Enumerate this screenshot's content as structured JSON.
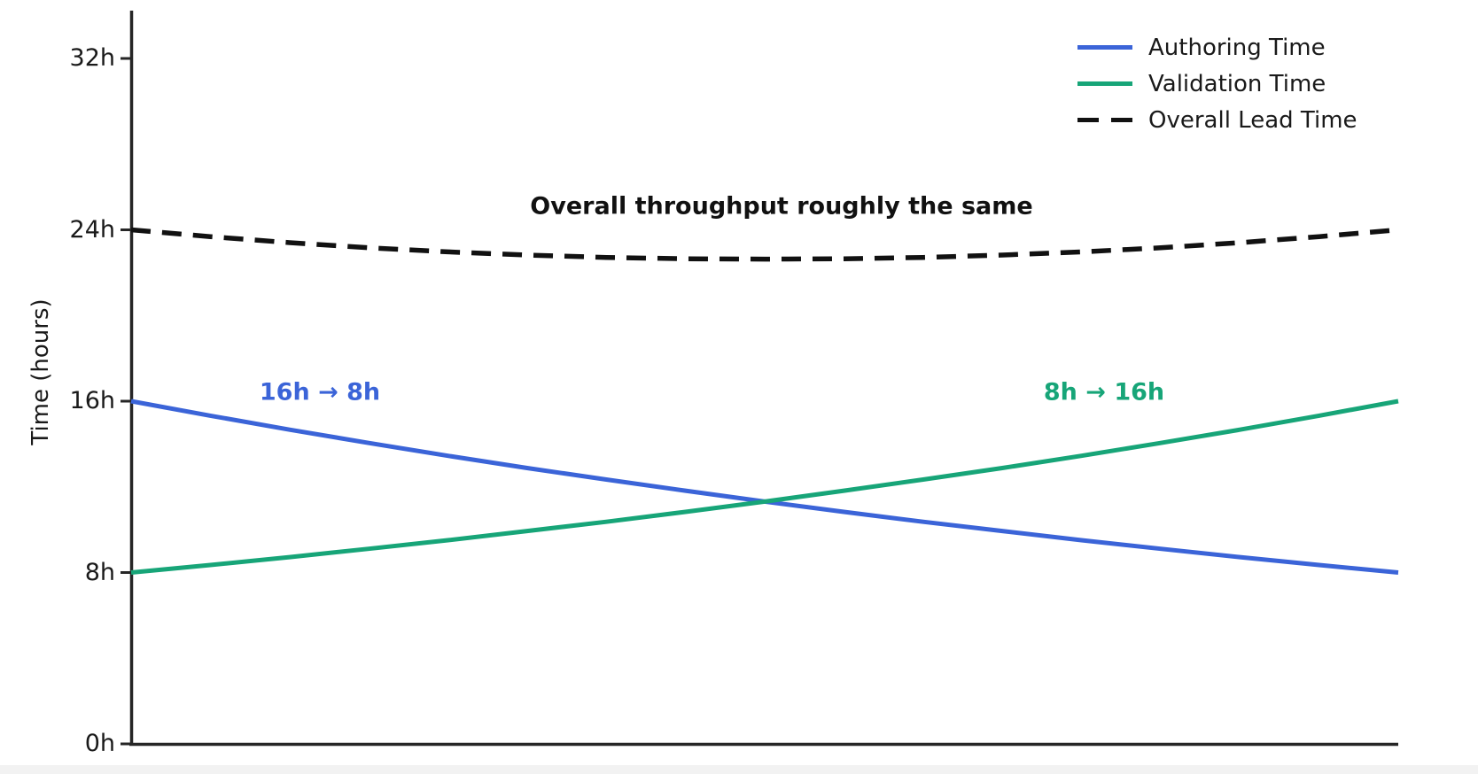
{
  "chart_data": {
    "type": "line",
    "ylabel": "Time (hours)",
    "ylim": [
      0,
      34
    ],
    "grid": false,
    "legend_position": "upper right",
    "yticks": [
      {
        "label": "0h",
        "value": 0
      },
      {
        "label": "8h",
        "value": 8
      },
      {
        "label": "16h",
        "value": 16
      },
      {
        "label": "24h",
        "value": 24
      },
      {
        "label": "32h",
        "value": 32
      }
    ],
    "x": [
      0,
      0.0625,
      0.125,
      0.1875,
      0.25,
      0.3125,
      0.375,
      0.4375,
      0.5,
      0.5625,
      0.625,
      0.6875,
      0.75,
      0.8125,
      0.875,
      0.9375,
      1
    ],
    "series": [
      {
        "name": "Authoring Time",
        "color": "#3b64d8",
        "dashed": false,
        "start_value_hours": 16,
        "end_value_hours": 8,
        "values": [
          16,
          15.32,
          14.67,
          14.05,
          13.45,
          12.88,
          12.34,
          11.82,
          11.31,
          10.83,
          10.37,
          9.94,
          9.51,
          9.11,
          8.72,
          8.35,
          8
        ]
      },
      {
        "name": "Validation Time",
        "color": "#17a578",
        "dashed": false,
        "start_value_hours": 8,
        "end_value_hours": 16,
        "values": [
          8,
          8.35,
          8.72,
          9.11,
          9.51,
          9.94,
          10.37,
          10.83,
          11.31,
          11.82,
          12.34,
          12.88,
          13.45,
          14.05,
          14.67,
          15.32,
          16
        ]
      },
      {
        "name": "Overall Lead Time",
        "color": "#111111",
        "dashed": true,
        "start_value_hours": 24,
        "end_value_hours": 24,
        "values": [
          24,
          23.68,
          23.4,
          23.16,
          22.97,
          22.82,
          22.71,
          22.65,
          22.63,
          22.65,
          22.71,
          22.82,
          22.97,
          23.16,
          23.4,
          23.68,
          24
        ]
      }
    ]
  },
  "annotations": {
    "authoring_change": {
      "text": "16h → 8h",
      "color": "#3b64d8"
    },
    "validation_change": {
      "text": "8h → 16h",
      "color": "#17a578"
    },
    "overall_note": {
      "text": "Overall throughput roughly the same",
      "color": "#111111"
    }
  }
}
